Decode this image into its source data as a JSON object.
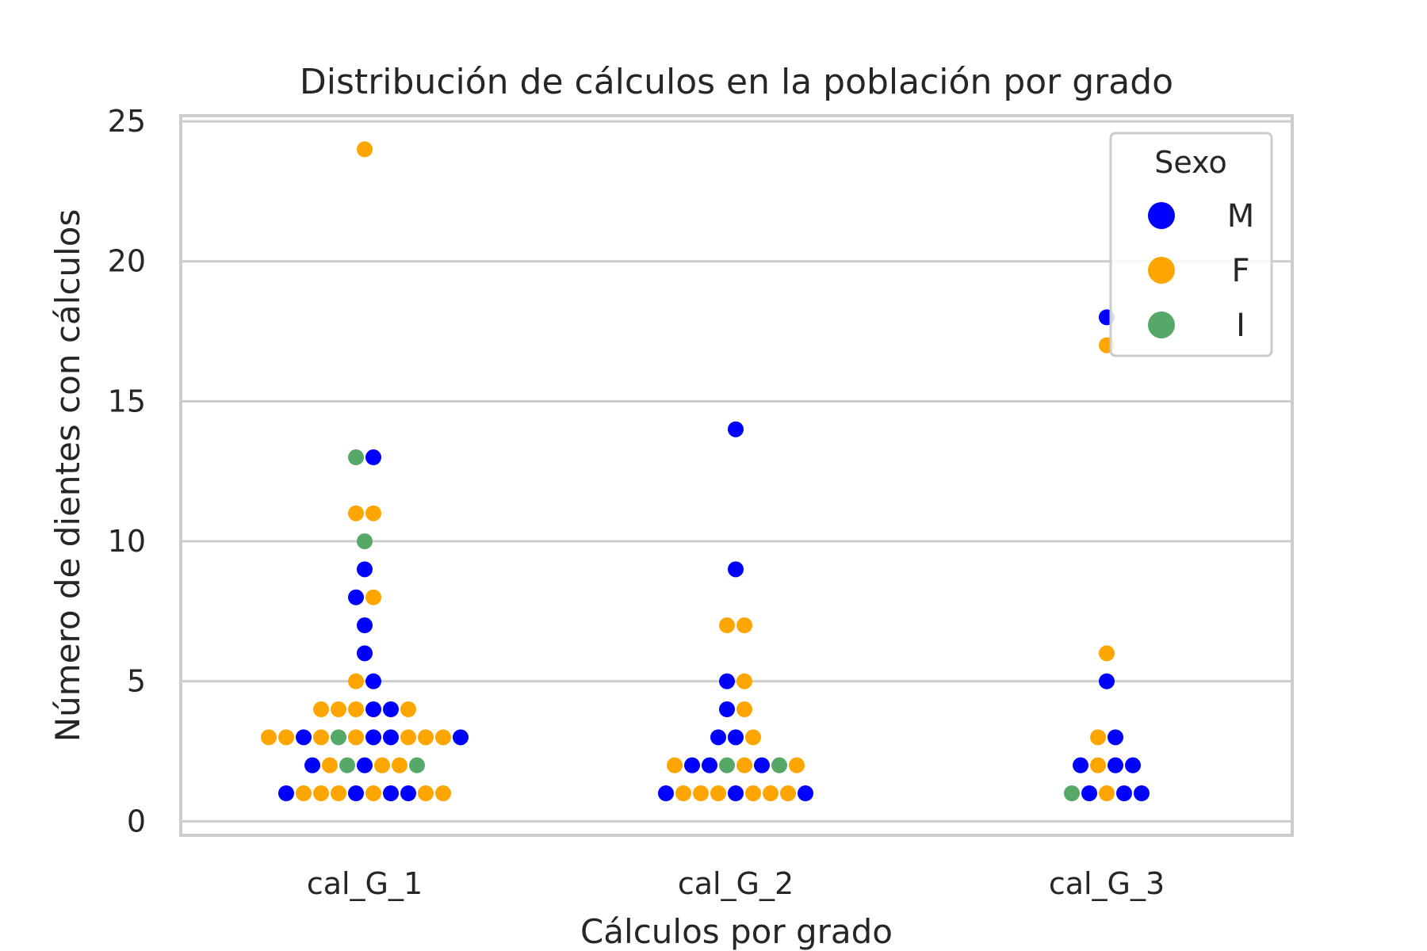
{
  "chart_data": {
    "type": "scatter",
    "subtype": "swarm",
    "title": "Distribución de cálculos en la población por grado",
    "xlabel": "Cálculos por grado",
    "ylabel": "Número de dientes con cálculos",
    "categories": [
      "cal_G_1",
      "cal_G_2",
      "cal_G_3"
    ],
    "ylim": [
      -0.5,
      25.2
    ],
    "yticks": [
      0,
      5,
      10,
      15,
      20,
      25
    ],
    "grid": true,
    "legend": {
      "title": "Sexo",
      "placement": "top-right",
      "entries": [
        {
          "label": "M",
          "color": "#0000ff"
        },
        {
          "label": "F",
          "color": "#ffa500"
        },
        {
          "label": "I",
          "color": "#55a868"
        }
      ]
    },
    "series": [
      {
        "category": "cal_G_1",
        "points": [
          {
            "y": 24,
            "sexo": [
              "F"
            ]
          },
          {
            "y": 13,
            "sexo": [
              "I",
              "M"
            ]
          },
          {
            "y": 11,
            "sexo": [
              "F",
              "F"
            ]
          },
          {
            "y": 10,
            "sexo": [
              "I"
            ]
          },
          {
            "y": 9,
            "sexo": [
              "M"
            ]
          },
          {
            "y": 8,
            "sexo": [
              "M",
              "F"
            ]
          },
          {
            "y": 7,
            "sexo": [
              "M"
            ]
          },
          {
            "y": 6,
            "sexo": [
              "M"
            ]
          },
          {
            "y": 5,
            "sexo": [
              "F",
              "M"
            ]
          },
          {
            "y": 4,
            "sexo": [
              "F",
              "F",
              "F",
              "M",
              "M",
              "F"
            ]
          },
          {
            "y": 3,
            "sexo": [
              "F",
              "F",
              "M",
              "F",
              "I",
              "F",
              "M",
              "M",
              "F",
              "F",
              "F",
              "M"
            ]
          },
          {
            "y": 2,
            "sexo": [
              "M",
              "F",
              "I",
              "M",
              "F",
              "F",
              "I"
            ]
          },
          {
            "y": 1,
            "sexo": [
              "M",
              "F",
              "F",
              "F",
              "M",
              "F",
              "M",
              "M",
              "F",
              "F"
            ]
          }
        ]
      },
      {
        "category": "cal_G_2",
        "points": [
          {
            "y": 14,
            "sexo": [
              "M"
            ]
          },
          {
            "y": 9,
            "sexo": [
              "M"
            ]
          },
          {
            "y": 7,
            "sexo": [
              "F",
              "F"
            ]
          },
          {
            "y": 5,
            "sexo": [
              "M",
              "F"
            ]
          },
          {
            "y": 4,
            "sexo": [
              "M",
              "F"
            ]
          },
          {
            "y": 3,
            "sexo": [
              "M",
              "M",
              "F"
            ]
          },
          {
            "y": 2,
            "sexo": [
              "F",
              "M",
              "M",
              "I",
              "F",
              "M",
              "I",
              "F"
            ]
          },
          {
            "y": 1,
            "sexo": [
              "M",
              "F",
              "F",
              "F",
              "M",
              "F",
              "F",
              "F",
              "M"
            ]
          }
        ]
      },
      {
        "category": "cal_G_3",
        "points": [
          {
            "y": 18,
            "sexo": [
              "M"
            ]
          },
          {
            "y": 17,
            "sexo": [
              "F"
            ]
          },
          {
            "y": 6,
            "sexo": [
              "F"
            ]
          },
          {
            "y": 5,
            "sexo": [
              "M"
            ]
          },
          {
            "y": 3,
            "sexo": [
              "F",
              "M"
            ]
          },
          {
            "y": 2,
            "sexo": [
              "M",
              "F",
              "M",
              "M"
            ]
          },
          {
            "y": 1,
            "sexo": [
              "I",
              "M",
              "F",
              "M",
              "M"
            ]
          }
        ]
      }
    ]
  }
}
